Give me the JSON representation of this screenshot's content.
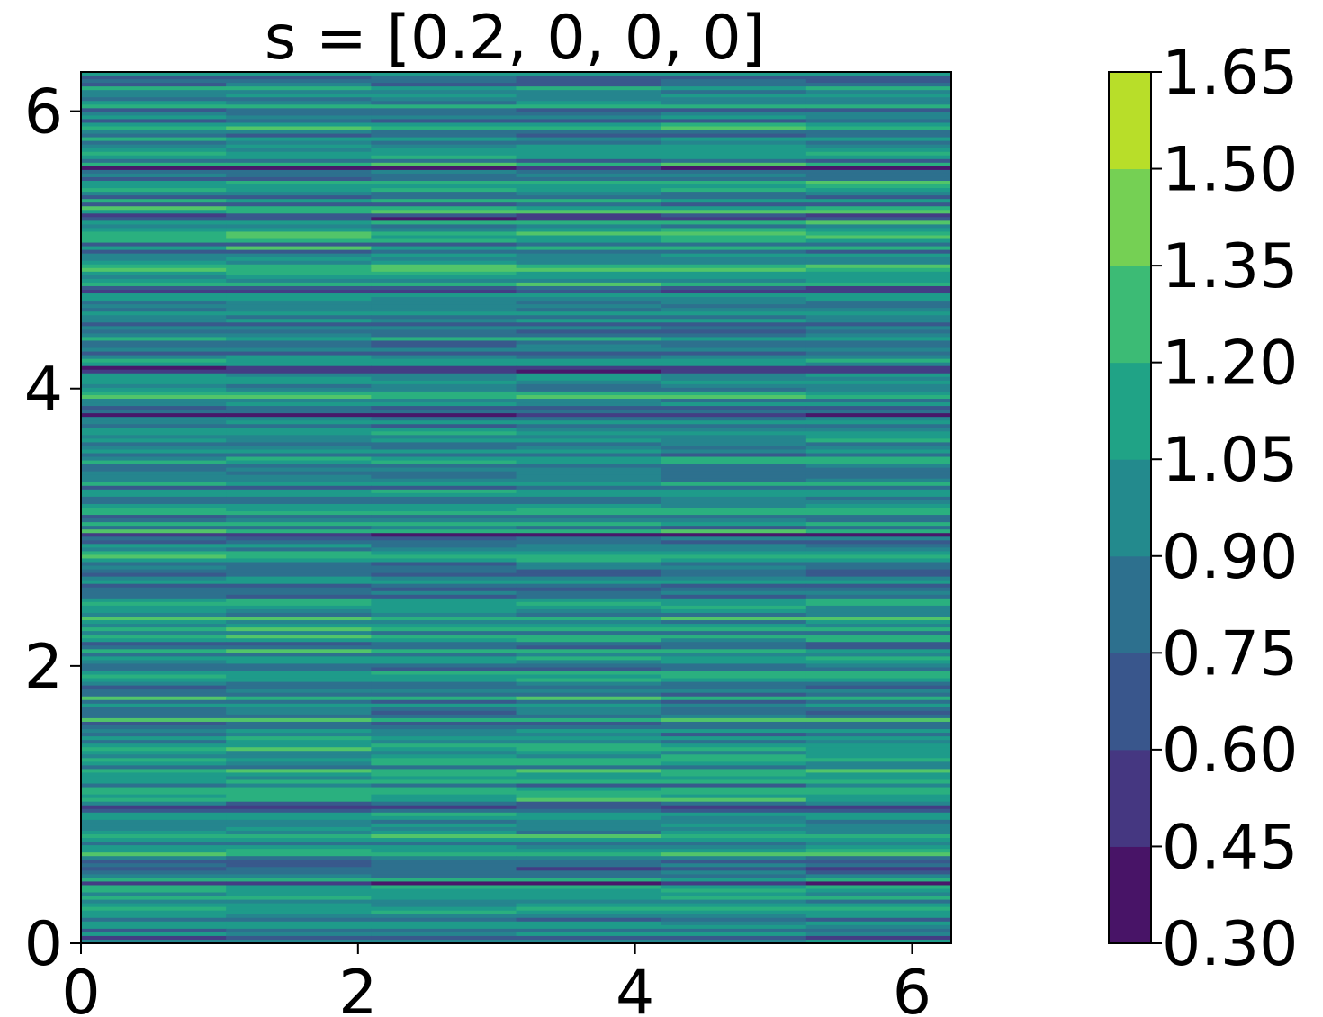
{
  "chart_data": {
    "type": "heatmap",
    "title": "s = [0.2, 0, 0, 0]",
    "xlabel": "",
    "ylabel": "",
    "xlim": [
      0,
      6.283
    ],
    "ylim": [
      0,
      6.283
    ],
    "x_ticks": [
      0,
      2,
      4,
      6
    ],
    "y_ticks": [
      0,
      2,
      4,
      6
    ],
    "x_tick_labels": [
      "0",
      "2",
      "4",
      "6"
    ],
    "y_tick_labels": [
      "0",
      "2",
      "4",
      "6"
    ],
    "grid": false,
    "colormap": "viridis",
    "colorbar": {
      "levels": [
        0.3,
        0.45,
        0.6,
        0.75,
        0.9,
        1.05,
        1.2,
        1.35,
        1.5,
        1.65
      ],
      "tick_labels": [
        "0.30",
        "0.45",
        "0.60",
        "0.75",
        "0.90",
        "1.05",
        "1.20",
        "1.35",
        "1.50",
        "1.65"
      ],
      "colors": [
        "#481467",
        "#453781",
        "#39568c",
        "#2d708e",
        "#238a8d",
        "#20a386",
        "#3cbb75",
        "#75d054",
        "#b8de29",
        "#fde725"
      ],
      "band_colors": [
        "#48186a",
        "#433d84",
        "#38598c",
        "#2d708e",
        "#25858e",
        "#1e9b8a",
        "#2ab07f",
        "#52c569",
        "#86d549",
        "#dce319"
      ]
    },
    "description_of_field": "horizontal streaks varying mostly with y; values mostly between 0.60 and 1.65"
  }
}
